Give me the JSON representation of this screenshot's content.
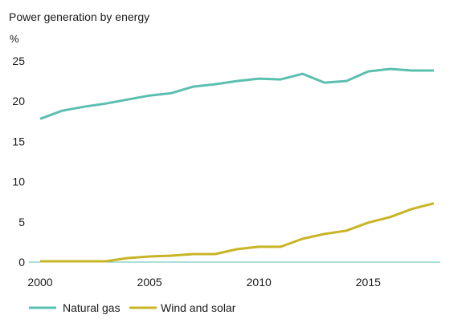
{
  "chart_data": {
    "type": "line",
    "title": "Power generation by energy",
    "ylabel": "%",
    "xlabel": "",
    "x": [
      2000,
      2001,
      2002,
      2003,
      2004,
      2005,
      2006,
      2007,
      2008,
      2009,
      2010,
      2011,
      2012,
      2013,
      2014,
      2015,
      2016,
      2017,
      2018
    ],
    "series": [
      {
        "name": "Natural gas",
        "color": "#5bbfb0",
        "values": [
          17.8,
          18.8,
          19.3,
          19.7,
          20.2,
          20.7,
          21.0,
          21.8,
          22.1,
          22.5,
          22.8,
          22.7,
          23.4,
          22.3,
          22.5,
          23.7,
          24.0,
          23.8,
          23.8
        ]
      },
      {
        "name": "Wind and solar",
        "color": "#c8b424",
        "values": [
          0.1,
          0.1,
          0.1,
          0.1,
          0.5,
          0.7,
          0.8,
          1.0,
          1.0,
          1.6,
          1.9,
          1.9,
          2.9,
          3.5,
          3.9,
          4.9,
          5.6,
          6.6,
          7.3
        ]
      }
    ],
    "xticks": [
      2000,
      2005,
      2010,
      2015
    ],
    "yticks": [
      0,
      5,
      10,
      15,
      20,
      25
    ],
    "xlim": [
      2000,
      2018
    ],
    "ylim": [
      0,
      25
    ],
    "grid": false,
    "axis_color": "#5bbfb0",
    "legend": "bottom-left"
  }
}
